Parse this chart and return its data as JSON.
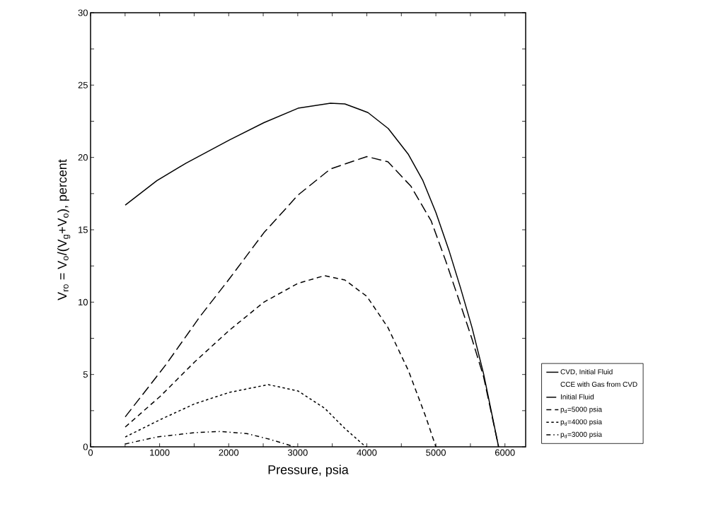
{
  "chart_data": {
    "type": "line",
    "xlabel": "Pressure, psia",
    "ylabel": "V$_{ro}$ = V$_{o}$/(V$_{g}$+V$_{o}$), percent",
    "legend_title": "CCE with Gas from CVD",
    "legend": "right",
    "grid": false,
    "xlim": [
      0,
      6300
    ],
    "ylim": [
      0,
      30
    ],
    "xticks": [
      0,
      {
        "value": 500,
        "label": null
      },
      1000,
      {
        "value": 1500,
        "label": null
      },
      2000,
      {
        "value": 2500,
        "label": null
      },
      3000,
      {
        "value": 3500,
        "label": null
      },
      4000,
      {
        "value": 4500,
        "label": null
      },
      5000,
      {
        "value": 5500,
        "label": null
      },
      6000
    ],
    "yticks": [
      0,
      {
        "value": 2.5,
        "label": null
      },
      5,
      {
        "value": 7.5,
        "label": null
      },
      10,
      {
        "value": 12.5,
        "label": null
      },
      15,
      {
        "value": 17.5,
        "label": null
      },
      20,
      {
        "value": 22.5,
        "label": null
      },
      25,
      {
        "value": 27.5,
        "label": null
      },
      30
    ],
    "series": [
      {
        "name": "CVD, Initial Fluid",
        "color": "#000000",
        "line_style": "solid",
        "x": [
          502,
          962,
          1381,
          2008,
          2510,
          3004,
          3473,
          3682,
          4017,
          4310,
          4603,
          4812,
          5000,
          5188,
          5356,
          5523,
          5690,
          5908
        ],
        "values": [
          16.7,
          18.4,
          19.6,
          21.2,
          22.4,
          23.4,
          23.75,
          23.7,
          23.1,
          22.0,
          20.2,
          18.4,
          16.2,
          13.6,
          11.0,
          8.25,
          5.06,
          0
        ]
      },
      {
        "name": "Initial Fluid",
        "color": "#000000",
        "line_style": "long dashed",
        "x": [
          502,
          1088,
          1590,
          2008,
          2510,
          3004,
          3473,
          4000,
          4305,
          4640,
          4933,
          5146,
          5356,
          5523,
          5690,
          5908
        ],
        "values": [
          2.07,
          5.66,
          9.04,
          11.6,
          14.8,
          17.4,
          19.2,
          20.06,
          19.7,
          18.0,
          15.6,
          12.8,
          9.84,
          7.45,
          4.86,
          0
        ]
      },
      {
        "name": "p$_{d}$=5000 psia",
        "color": "#000000",
        "line_style": "dashed",
        "x": [
          502,
          1004,
          1506,
          2008,
          2510,
          3004,
          3389,
          3682,
          4000,
          4305,
          4603,
          4854,
          5000
        ],
        "values": [
          1.37,
          3.47,
          5.86,
          8.05,
          10.0,
          11.3,
          11.83,
          11.53,
          10.4,
          8.25,
          5.26,
          2.07,
          0
        ]
      },
      {
        "name": "p$_{d}$=4000 psia",
        "color": "#000000",
        "line_style": "dotted",
        "x": [
          502,
          1004,
          1506,
          2008,
          2573,
          3004,
          3389,
          3682,
          3975,
          4000
        ],
        "values": [
          0.68,
          1.87,
          2.97,
          3.76,
          4.3,
          3.86,
          2.67,
          1.27,
          0.04,
          0
        ]
      },
      {
        "name": "p$_{d}$=3000 psia",
        "color": "#000000",
        "line_style": "dash dot",
        "x": [
          502,
          962,
          1506,
          1883,
          2259,
          2594,
          2929,
          2950
        ],
        "values": [
          0.2,
          0.68,
          0.98,
          1.06,
          0.92,
          0.52,
          0.04,
          0
        ]
      }
    ]
  }
}
